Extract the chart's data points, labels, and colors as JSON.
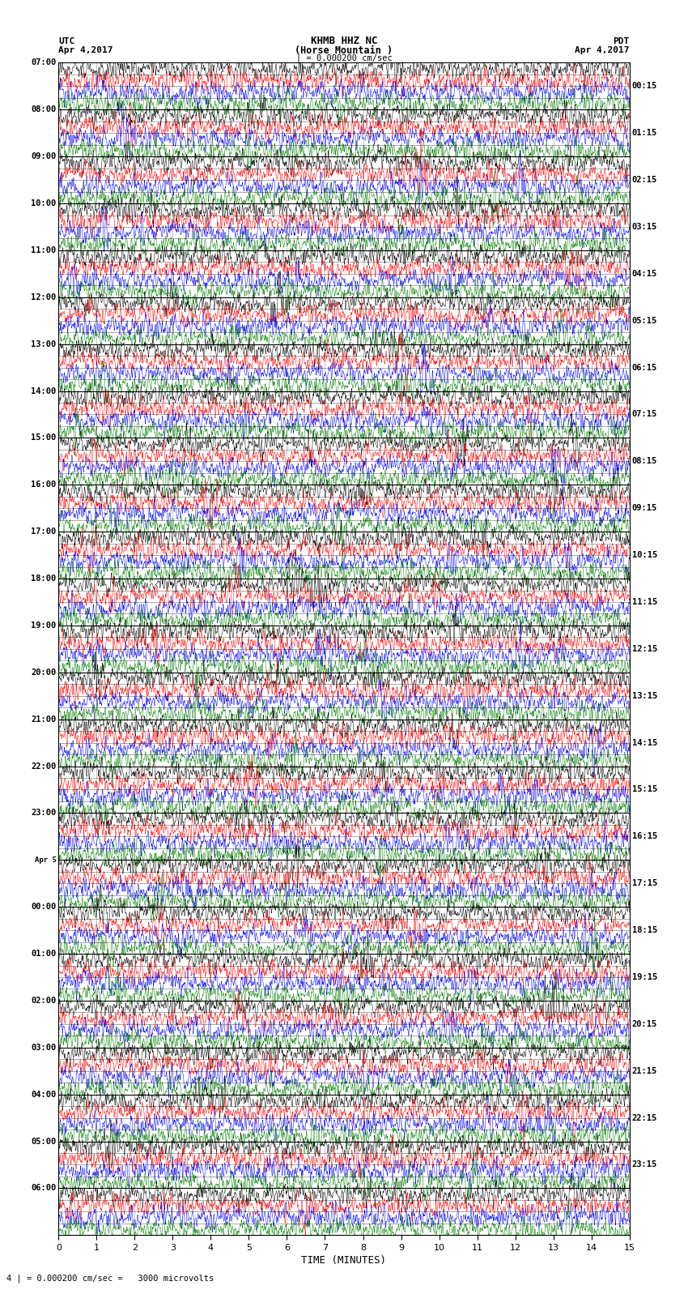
{
  "title_line1": "KHMB HHZ NC",
  "title_line2": "(Horse Mountain )",
  "title_scale": "| = 0.000200 cm/sec",
  "left_label_top": "UTC",
  "left_label_date": "Apr 4,2017",
  "right_label_top": "PDT",
  "right_label_date": "Apr 4,2017",
  "xlabel": "TIME (MINUTES)",
  "bottom_label": "4 | = 0.000200 cm/sec =   3000 microvolts",
  "trace_colors": [
    "black",
    "red",
    "blue",
    "green"
  ],
  "x_ticks": [
    0,
    1,
    2,
    3,
    4,
    5,
    6,
    7,
    8,
    9,
    10,
    11,
    12,
    13,
    14,
    15
  ],
  "left_times": [
    "07:00",
    "08:00",
    "09:00",
    "10:00",
    "11:00",
    "12:00",
    "13:00",
    "14:00",
    "15:00",
    "16:00",
    "17:00",
    "18:00",
    "19:00",
    "20:00",
    "21:00",
    "22:00",
    "23:00",
    "Apr 5",
    "00:00",
    "01:00",
    "02:00",
    "03:00",
    "04:00",
    "05:00",
    "06:00"
  ],
  "right_times": [
    "00:15",
    "01:15",
    "02:15",
    "03:15",
    "04:15",
    "05:15",
    "06:15",
    "07:15",
    "08:15",
    "09:15",
    "10:15",
    "11:15",
    "12:15",
    "13:15",
    "14:15",
    "15:15",
    "16:15",
    "17:15",
    "18:15",
    "19:15",
    "20:15",
    "21:15",
    "22:15",
    "23:15"
  ],
  "n_rows": 25,
  "traces_per_row": 4,
  "fig_width": 8.5,
  "fig_height": 16.13,
  "bg_color": "white",
  "plot_bg_color": "white"
}
